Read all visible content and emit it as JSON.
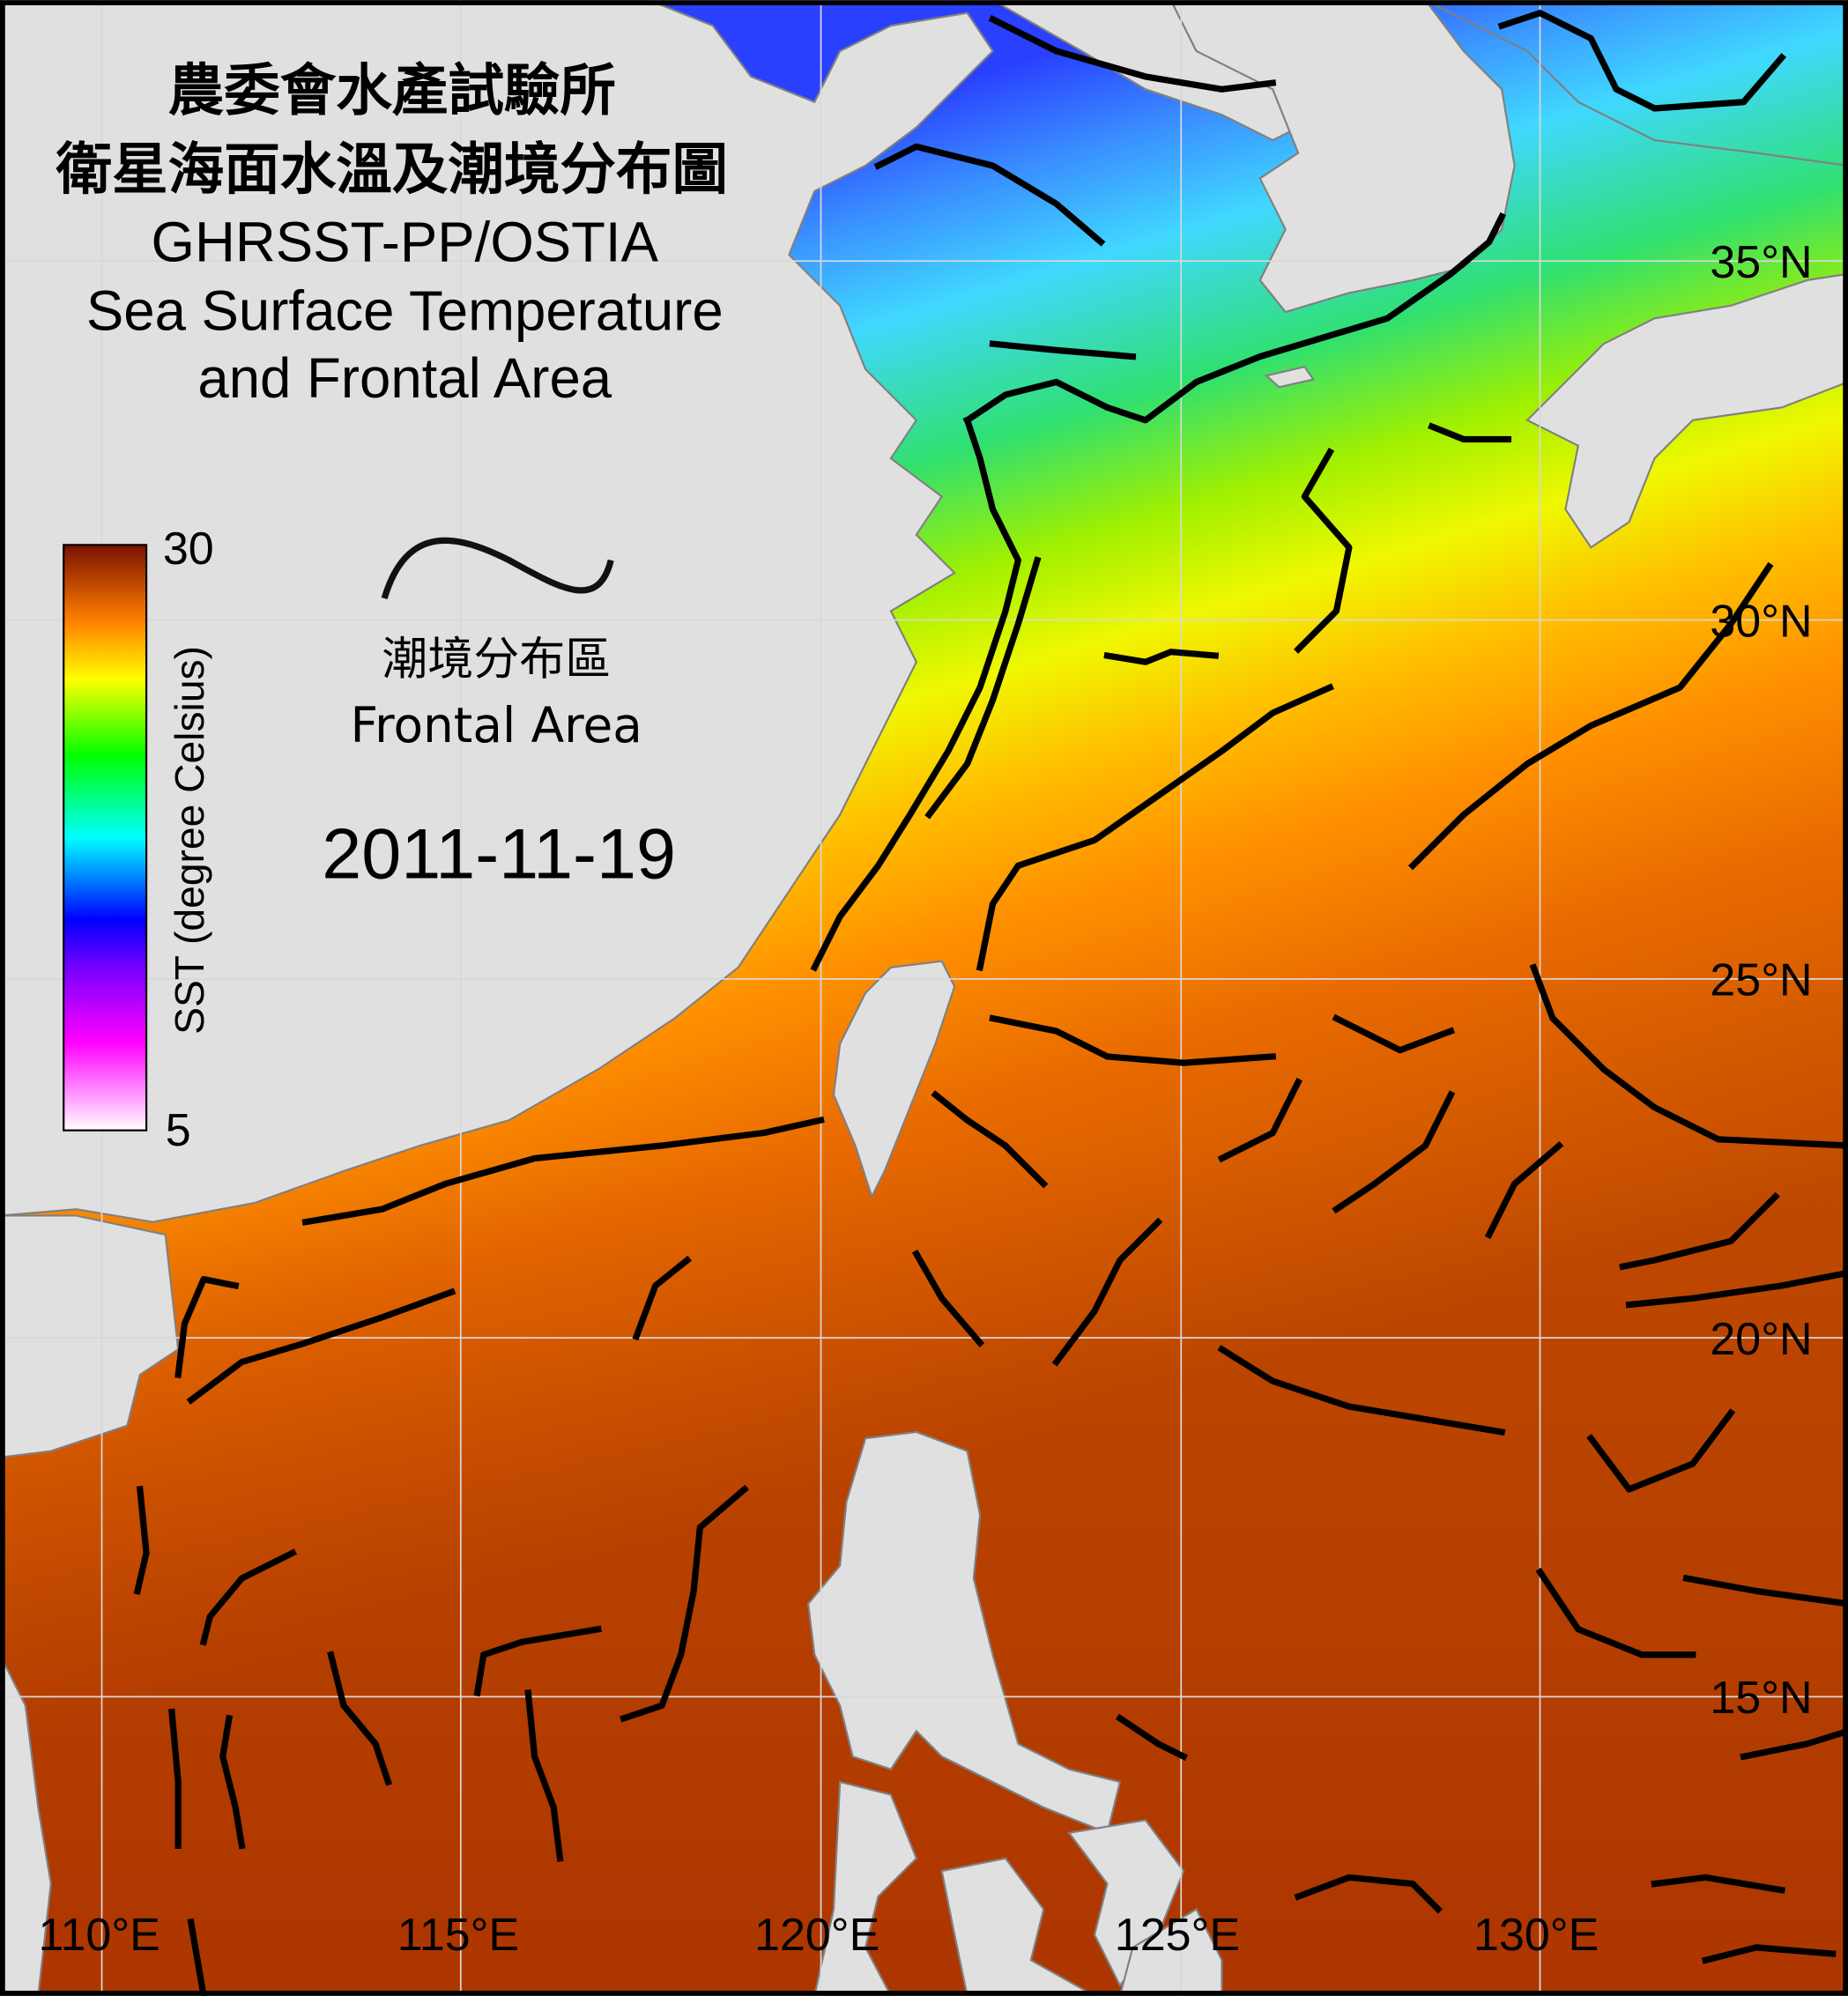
{
  "title": {
    "line1": "農委會水產試驗所",
    "line2": "衛星海面水溫及潮境分布圖",
    "line3": "GHRSST-PP/OSTIA",
    "line4": "Sea Surface Temperature",
    "line5": "and Frontal Area"
  },
  "legend": {
    "front_label_zh": "潮境分布區",
    "front_label_en": "Frontal Area"
  },
  "date": "2011-11-19",
  "colorbar": {
    "label": "SST (degree Celsius)",
    "max_label": "30",
    "min_label": "5",
    "min": 5,
    "max": 30,
    "colors": [
      "#ffffff",
      "#ff00ff",
      "#8000ff",
      "#0000ff",
      "#00ffff",
      "#00ff00",
      "#ffff00",
      "#ff8000",
      "#7a1000"
    ]
  },
  "lat_labels": [
    "35°N",
    "30°N",
    "25°N",
    "20°N",
    "15°N"
  ],
  "lon_labels": [
    "110°E",
    "115°E",
    "120°E",
    "125°E",
    "130°E"
  ],
  "colors": {
    "land": "#e0e0e0",
    "front": "#000000",
    "border": "#000000"
  }
}
